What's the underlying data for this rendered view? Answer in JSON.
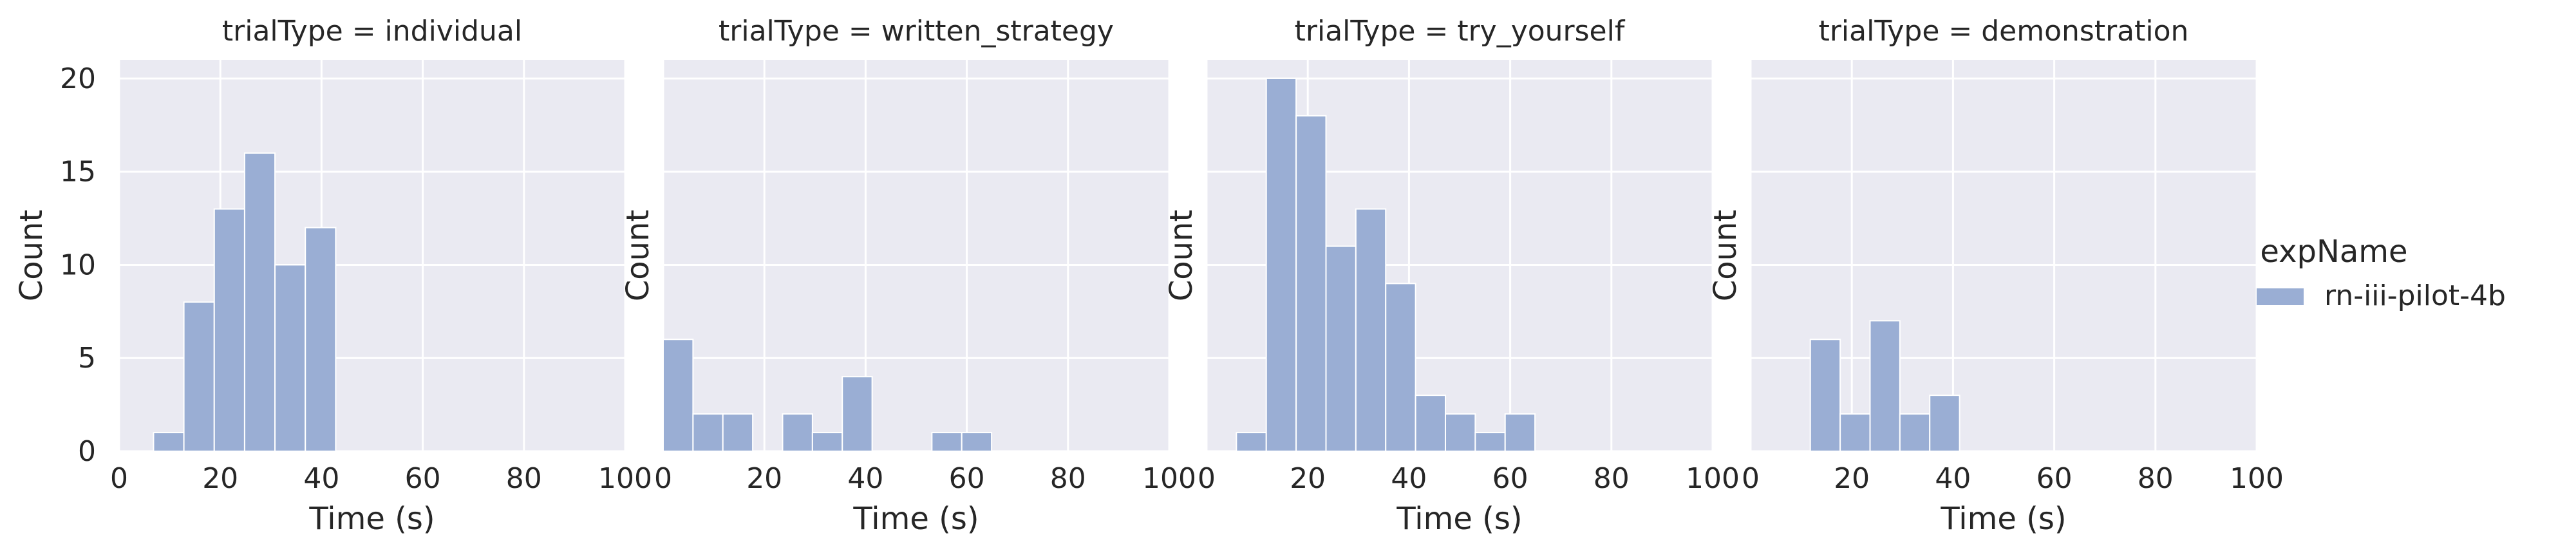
{
  "figure": {
    "legend": {
      "title": "expName",
      "entries": [
        {
          "label": "rn-iii-pilot-4b",
          "color": "#9aaed4"
        }
      ],
      "placement": "right"
    },
    "background_color": "#eaeaf2",
    "grid_color": "#ffffff",
    "bar_color": "#9aaed4",
    "bar_edge_color": "#ffffff"
  },
  "chart_data": [
    {
      "type": "bar",
      "title": "trialType = individual",
      "xlabel": "Time (s)",
      "ylabel": "Count",
      "xlim": [
        0,
        100
      ],
      "ylim": [
        0,
        21
      ],
      "xticks": [
        0,
        20,
        40,
        60,
        80,
        100
      ],
      "yticks": [
        0,
        5,
        10,
        15,
        20
      ],
      "show_ytick_labels": true,
      "grid": true,
      "series": [
        {
          "name": "rn-iii-pilot-4b",
          "bins": [
            [
              6.8,
              12.8
            ],
            [
              12.8,
              18.8
            ],
            [
              18.8,
              24.8
            ],
            [
              24.8,
              30.8
            ],
            [
              30.8,
              36.8
            ],
            [
              36.8,
              42.8
            ],
            [
              42.8,
              48.8
            ]
          ],
          "values": [
            1,
            8,
            13,
            16,
            10,
            12,
            0
          ]
        }
      ]
    },
    {
      "type": "bar",
      "title": "trialType = written_strategy",
      "xlabel": "Time (s)",
      "ylabel": "Count",
      "xlim": [
        0,
        100
      ],
      "ylim": [
        0,
        21
      ],
      "xticks": [
        0,
        20,
        40,
        60,
        80,
        100
      ],
      "yticks": [
        0,
        5,
        10,
        15,
        20
      ],
      "show_ytick_labels": false,
      "grid": true,
      "series": [
        {
          "name": "rn-iii-pilot-4b",
          "bins": [
            [
              0,
              5.9
            ],
            [
              5.9,
              11.8
            ],
            [
              11.8,
              17.7
            ],
            [
              17.7,
              23.6
            ],
            [
              23.6,
              29.5
            ],
            [
              29.5,
              35.4
            ],
            [
              35.4,
              41.3
            ],
            [
              41.3,
              47.2
            ],
            [
              47.2,
              53.1
            ],
            [
              53.1,
              59.0
            ],
            [
              59.0,
              64.9
            ]
          ],
          "values": [
            6,
            2,
            2,
            0,
            2,
            1,
            4,
            0,
            0,
            1,
            1
          ]
        }
      ]
    },
    {
      "type": "bar",
      "title": "trialType = try_yourself",
      "xlabel": "Time (s)",
      "ylabel": "Count",
      "xlim": [
        0,
        100
      ],
      "ylim": [
        0,
        21
      ],
      "xticks": [
        0,
        20,
        40,
        60,
        80,
        100
      ],
      "yticks": [
        0,
        5,
        10,
        15,
        20
      ],
      "show_ytick_labels": false,
      "grid": true,
      "series": [
        {
          "name": "rn-iii-pilot-4b",
          "bins": [
            [
              5.9,
              11.8
            ],
            [
              11.8,
              17.7
            ],
            [
              17.7,
              23.6
            ],
            [
              23.6,
              29.5
            ],
            [
              29.5,
              35.4
            ],
            [
              35.4,
              41.3
            ],
            [
              41.3,
              47.2
            ],
            [
              47.2,
              53.1
            ],
            [
              53.1,
              59.0
            ],
            [
              59.0,
              64.9
            ],
            [
              64.9,
              70.8
            ]
          ],
          "values": [
            1,
            20,
            18,
            11,
            13,
            9,
            3,
            2,
            1,
            2,
            0
          ]
        }
      ]
    },
    {
      "type": "bar",
      "title": "trialType = demonstration",
      "xlabel": "Time (s)",
      "ylabel": "Count",
      "xlim": [
        0,
        100
      ],
      "ylim": [
        0,
        21
      ],
      "xticks": [
        0,
        20,
        40,
        60,
        80,
        100
      ],
      "yticks": [
        0,
        5,
        10,
        15,
        20
      ],
      "show_ytick_labels": false,
      "grid": true,
      "series": [
        {
          "name": "rn-iii-pilot-4b",
          "bins": [
            [
              11.8,
              17.7
            ],
            [
              17.7,
              23.6
            ],
            [
              23.6,
              29.5
            ],
            [
              29.5,
              35.4
            ],
            [
              35.4,
              41.3
            ],
            [
              41.3,
              47.2
            ]
          ],
          "values": [
            6,
            2,
            7,
            2,
            3,
            0
          ]
        }
      ]
    }
  ]
}
